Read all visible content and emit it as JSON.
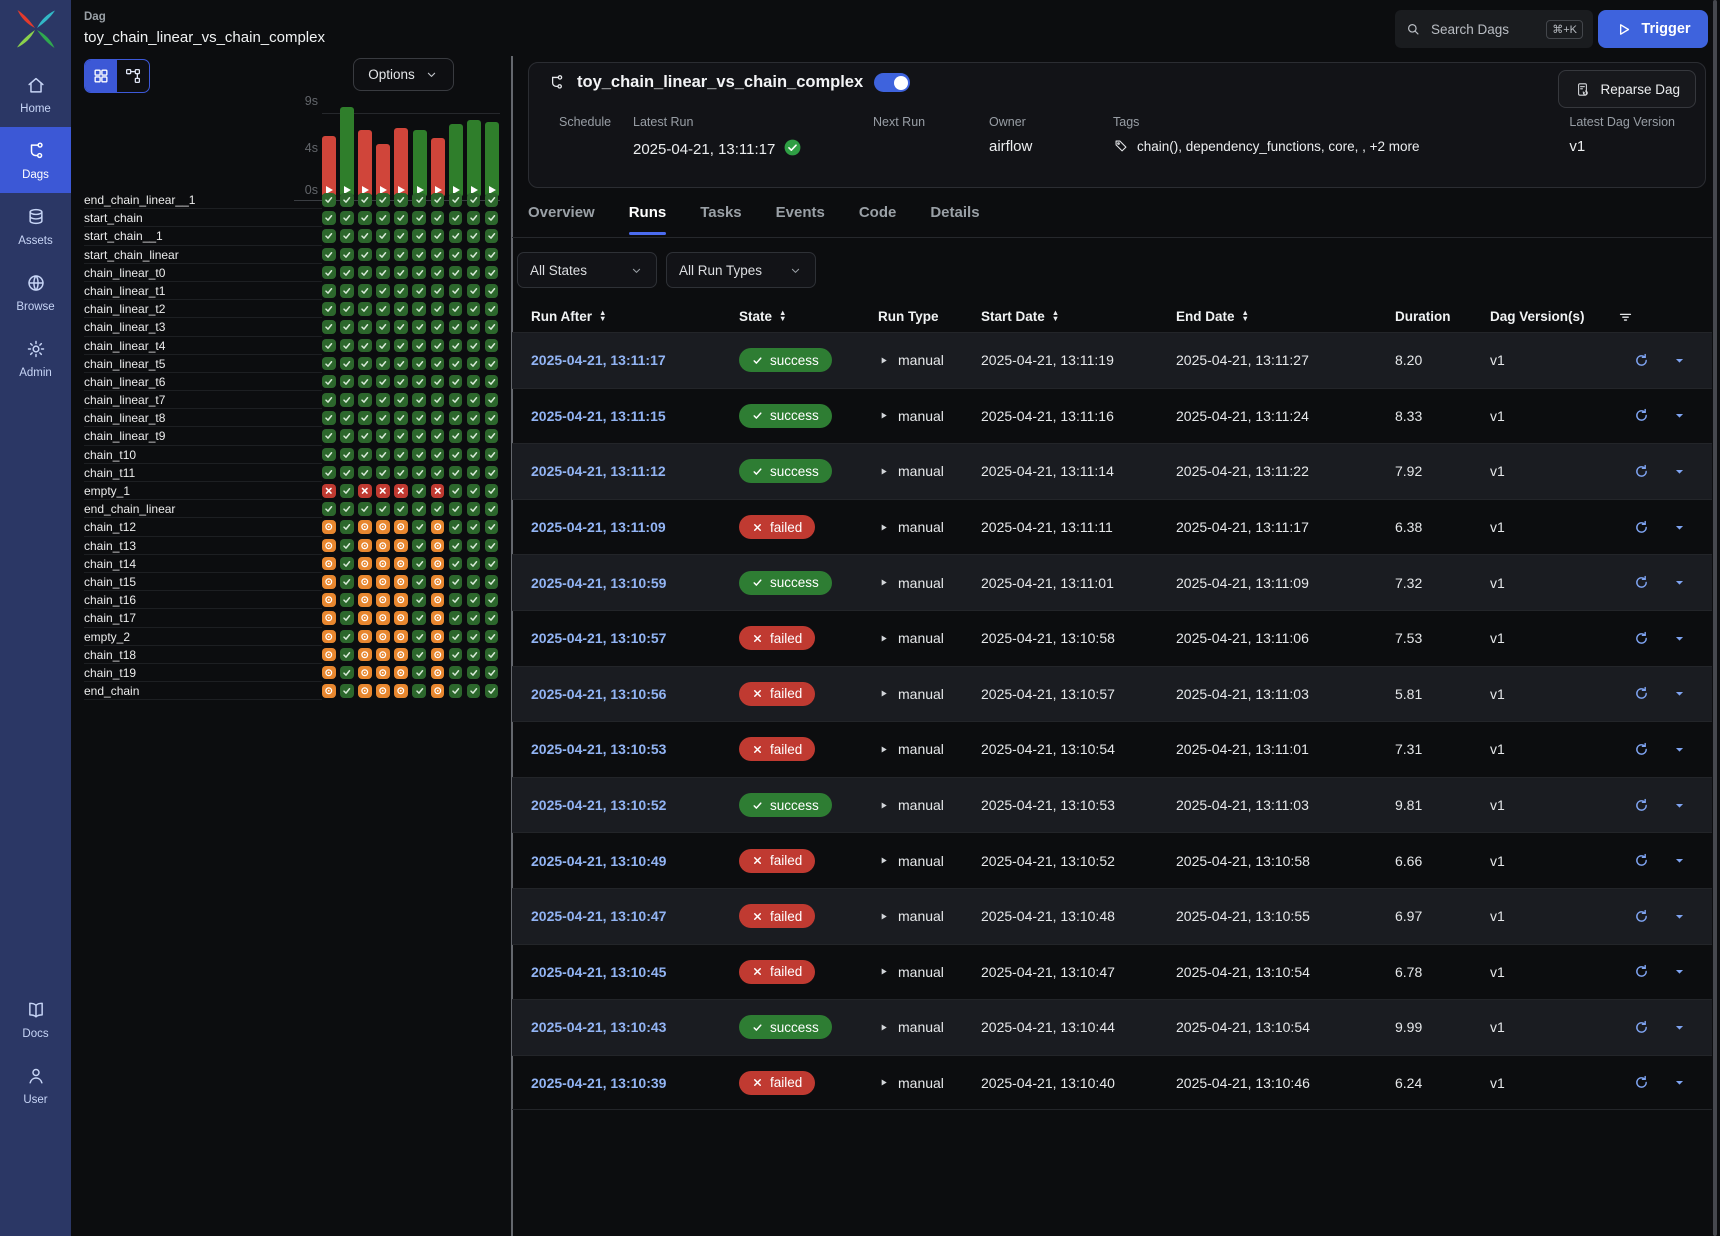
{
  "app": {
    "breadcrumb": "Dag",
    "dag_id": "toy_chain_linear_vs_chain_complex",
    "search_placeholder": "Search Dags",
    "search_shortcut": "⌘+K",
    "trigger_label": "Trigger"
  },
  "sidebar": {
    "items": [
      {
        "id": "home",
        "label": "Home",
        "active": false
      },
      {
        "id": "dags",
        "label": "Dags",
        "active": true
      },
      {
        "id": "assets",
        "label": "Assets",
        "active": false
      },
      {
        "id": "browse",
        "label": "Browse",
        "active": false
      },
      {
        "id": "admin",
        "label": "Admin",
        "active": false
      }
    ],
    "bottom_items": [
      {
        "id": "docs",
        "label": "Docs",
        "active": false
      },
      {
        "id": "user",
        "label": "User",
        "active": false
      }
    ]
  },
  "left_panel": {
    "view_modes": [
      "grid",
      "graph"
    ],
    "active_view": "grid",
    "options_label": "Options",
    "chart": {
      "type": "bar",
      "ylabel": "duration",
      "y_ticks": [
        "9s",
        "4s",
        "0s"
      ],
      "y_max_seconds": 10.5,
      "runs": [
        {
          "state": "failed",
          "duration": 6.66
        },
        {
          "state": "success",
          "duration": 9.81
        },
        {
          "state": "failed",
          "duration": 7.31
        },
        {
          "state": "failed",
          "duration": 5.81
        },
        {
          "state": "failed",
          "duration": 7.53
        },
        {
          "state": "success",
          "duration": 7.32
        },
        {
          "state": "failed",
          "duration": 6.38
        },
        {
          "state": "success",
          "duration": 7.92
        },
        {
          "state": "success",
          "duration": 8.33
        },
        {
          "state": "success",
          "duration": 8.2
        }
      ]
    },
    "state_legend": {
      "s": "success",
      "f": "failed",
      "u": "upstream_failed"
    },
    "tasks": [
      {
        "name": "end_chain_linear__1",
        "states": "ssssssssss"
      },
      {
        "name": "start_chain",
        "states": "ssssssssss"
      },
      {
        "name": "start_chain__1",
        "states": "ssssssssss"
      },
      {
        "name": "start_chain_linear",
        "states": "ssssssssss"
      },
      {
        "name": "chain_linear_t0",
        "states": "ssssssssss"
      },
      {
        "name": "chain_linear_t1",
        "states": "ssssssssss"
      },
      {
        "name": "chain_linear_t2",
        "states": "ssssssssss"
      },
      {
        "name": "chain_linear_t3",
        "states": "ssssssssss"
      },
      {
        "name": "chain_linear_t4",
        "states": "ssssssssss"
      },
      {
        "name": "chain_linear_t5",
        "states": "ssssssssss"
      },
      {
        "name": "chain_linear_t6",
        "states": "ssssssssss"
      },
      {
        "name": "chain_linear_t7",
        "states": "ssssssssss"
      },
      {
        "name": "chain_linear_t8",
        "states": "ssssssssss"
      },
      {
        "name": "chain_linear_t9",
        "states": "ssssssssss"
      },
      {
        "name": "chain_t10",
        "states": "ssssssssss"
      },
      {
        "name": "chain_t11",
        "states": "ssssssssss"
      },
      {
        "name": "empty_1",
        "states": "fsfffsfsss"
      },
      {
        "name": "end_chain_linear",
        "states": "ssssssssss"
      },
      {
        "name": "chain_t12",
        "states": "usuuususss"
      },
      {
        "name": "chain_t13",
        "states": "usuuususss"
      },
      {
        "name": "chain_t14",
        "states": "usuuususss"
      },
      {
        "name": "chain_t15",
        "states": "usuuususss"
      },
      {
        "name": "chain_t16",
        "states": "usuuususss"
      },
      {
        "name": "chain_t17",
        "states": "usuuususss"
      },
      {
        "name": "empty_2",
        "states": "usuuususss"
      },
      {
        "name": "chain_t18",
        "states": "usuuususss"
      },
      {
        "name": "chain_t19",
        "states": "usuuususss"
      },
      {
        "name": "end_chain",
        "states": "usuuususss"
      }
    ]
  },
  "dag_panel": {
    "title": "toy_chain_linear_vs_chain_complex",
    "enabled": true,
    "reparse_label": "Reparse Dag",
    "info": [
      {
        "label": "Schedule",
        "value": ""
      },
      {
        "label": "Latest Run",
        "value": "2025-04-21, 13:11:17",
        "status_icon": "success"
      },
      {
        "label": "Next Run",
        "value": ""
      },
      {
        "label": "Owner",
        "value": "airflow"
      },
      {
        "label": "Tags",
        "value": "chain(), dependency_functions, core, , +2 more",
        "icon": "tag"
      },
      {
        "label": "Latest Dag Version",
        "value": "v1"
      }
    ],
    "tabs": [
      {
        "label": "Overview",
        "active": false
      },
      {
        "label": "Runs",
        "active": true
      },
      {
        "label": "Tasks",
        "active": false
      },
      {
        "label": "Events",
        "active": false
      },
      {
        "label": "Code",
        "active": false
      },
      {
        "label": "Details",
        "active": false
      }
    ],
    "filters": [
      {
        "id": "states",
        "value": "All States"
      },
      {
        "id": "run-types",
        "value": "All Run Types"
      }
    ]
  },
  "runs_table": {
    "columns": [
      {
        "label": "Run After",
        "sortable": true
      },
      {
        "label": "State",
        "sortable": true
      },
      {
        "label": "Run Type",
        "sortable": false
      },
      {
        "label": "Start Date",
        "sortable": true
      },
      {
        "label": "End Date",
        "sortable": true
      },
      {
        "label": "Duration",
        "sortable": false
      },
      {
        "label": "Dag Version(s)",
        "sortable": false
      }
    ],
    "rows": [
      {
        "run_after": "2025-04-21, 13:11:17",
        "state": "success",
        "run_type": "manual",
        "start_date": "2025-04-21, 13:11:19",
        "end_date": "2025-04-21, 13:11:27",
        "duration": "8.20",
        "version": "v1"
      },
      {
        "run_after": "2025-04-21, 13:11:15",
        "state": "success",
        "run_type": "manual",
        "start_date": "2025-04-21, 13:11:16",
        "end_date": "2025-04-21, 13:11:24",
        "duration": "8.33",
        "version": "v1"
      },
      {
        "run_after": "2025-04-21, 13:11:12",
        "state": "success",
        "run_type": "manual",
        "start_date": "2025-04-21, 13:11:14",
        "end_date": "2025-04-21, 13:11:22",
        "duration": "7.92",
        "version": "v1"
      },
      {
        "run_after": "2025-04-21, 13:11:09",
        "state": "failed",
        "run_type": "manual",
        "start_date": "2025-04-21, 13:11:11",
        "end_date": "2025-04-21, 13:11:17",
        "duration": "6.38",
        "version": "v1"
      },
      {
        "run_after": "2025-04-21, 13:10:59",
        "state": "success",
        "run_type": "manual",
        "start_date": "2025-04-21, 13:11:01",
        "end_date": "2025-04-21, 13:11:09",
        "duration": "7.32",
        "version": "v1"
      },
      {
        "run_after": "2025-04-21, 13:10:57",
        "state": "failed",
        "run_type": "manual",
        "start_date": "2025-04-21, 13:10:58",
        "end_date": "2025-04-21, 13:11:06",
        "duration": "7.53",
        "version": "v1"
      },
      {
        "run_after": "2025-04-21, 13:10:56",
        "state": "failed",
        "run_type": "manual",
        "start_date": "2025-04-21, 13:10:57",
        "end_date": "2025-04-21, 13:11:03",
        "duration": "5.81",
        "version": "v1"
      },
      {
        "run_after": "2025-04-21, 13:10:53",
        "state": "failed",
        "run_type": "manual",
        "start_date": "2025-04-21, 13:10:54",
        "end_date": "2025-04-21, 13:11:01",
        "duration": "7.31",
        "version": "v1"
      },
      {
        "run_after": "2025-04-21, 13:10:52",
        "state": "success",
        "run_type": "manual",
        "start_date": "2025-04-21, 13:10:53",
        "end_date": "2025-04-21, 13:11:03",
        "duration": "9.81",
        "version": "v1"
      },
      {
        "run_after": "2025-04-21, 13:10:49",
        "state": "failed",
        "run_type": "manual",
        "start_date": "2025-04-21, 13:10:52",
        "end_date": "2025-04-21, 13:10:58",
        "duration": "6.66",
        "version": "v1"
      },
      {
        "run_after": "2025-04-21, 13:10:47",
        "state": "failed",
        "run_type": "manual",
        "start_date": "2025-04-21, 13:10:48",
        "end_date": "2025-04-21, 13:10:55",
        "duration": "6.97",
        "version": "v1"
      },
      {
        "run_after": "2025-04-21, 13:10:45",
        "state": "failed",
        "run_type": "manual",
        "start_date": "2025-04-21, 13:10:47",
        "end_date": "2025-04-21, 13:10:54",
        "duration": "6.78",
        "version": "v1"
      },
      {
        "run_after": "2025-04-21, 13:10:43",
        "state": "success",
        "run_type": "manual",
        "start_date": "2025-04-21, 13:10:44",
        "end_date": "2025-04-21, 13:10:54",
        "duration": "9.99",
        "version": "v1"
      },
      {
        "run_after": "2025-04-21, 13:10:39",
        "state": "failed",
        "run_type": "manual",
        "start_date": "2025-04-21, 13:10:40",
        "end_date": "2025-04-21, 13:10:46",
        "duration": "6.24",
        "version": "v1"
      }
    ]
  }
}
